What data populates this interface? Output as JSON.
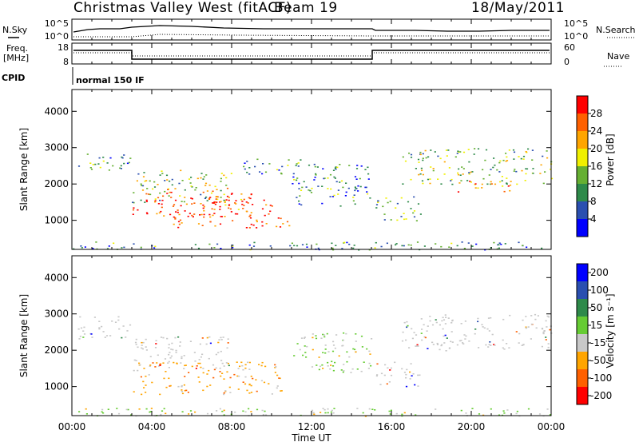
{
  "header": {
    "station": "Christmas Valley West (fitACF)",
    "beam": "Beam 19",
    "date": "18/May/2011"
  },
  "panels": {
    "nsky_label": "N.Sky",
    "nsearch_label": "N.Search",
    "nsky_ticks": [
      "10^5",
      "10^0"
    ],
    "freq_label_line1": "Freq.",
    "freq_label_line2": "[MHz]",
    "freq_ticks": [
      "18",
      "8"
    ],
    "nave_label": "Nave",
    "nave_ticks": [
      "60",
      "0"
    ],
    "cpid_label": "CPID",
    "cpid_text": "normal 150 IF"
  },
  "chart_data": [
    {
      "type": "heatmap",
      "name": "power",
      "ylabel": "Slant Range [km]",
      "xlabel": "",
      "yticks": [
        1000,
        2000,
        3000,
        4000
      ],
      "ylim": [
        200,
        4600
      ],
      "colorbar_label": "Power [dB]",
      "colorbar_ticks": [
        4,
        8,
        12,
        16,
        20,
        24,
        28
      ],
      "colorbar_colors": [
        "#0000ff",
        "#2a4fb0",
        "#2e8a4a",
        "#66b032",
        "#f0f000",
        "#ffa500",
        "#ff6000",
        "#ff0000"
      ],
      "scatter_bands": [
        {
          "t0": 0.3,
          "t1": 2.9,
          "r0": 2350,
          "r1": 2900,
          "level": 0.35
        },
        {
          "t0": 3.0,
          "t1": 9.0,
          "r0": 1100,
          "r1": 1900,
          "level": 0.85
        },
        {
          "t0": 5.0,
          "t1": 10.0,
          "r0": 800,
          "r1": 1600,
          "level": 0.9
        },
        {
          "t0": 10.0,
          "t1": 11.2,
          "r0": 800,
          "r1": 1100,
          "level": 0.85
        },
        {
          "t0": 3.0,
          "t1": 8.0,
          "r0": 1500,
          "r1": 2400,
          "level": 0.45
        },
        {
          "t0": 8.5,
          "t1": 11.5,
          "r0": 2200,
          "r1": 2700,
          "level": 0.3
        },
        {
          "t0": 11.0,
          "t1": 15.0,
          "r0": 1400,
          "r1": 2600,
          "level": 0.3
        },
        {
          "t0": 15.2,
          "t1": 17.5,
          "r0": 1000,
          "r1": 1700,
          "level": 0.4
        },
        {
          "t0": 16.5,
          "t1": 24.0,
          "r0": 2000,
          "r1": 3000,
          "level": 0.45
        },
        {
          "t0": 19.0,
          "t1": 22.0,
          "r0": 1800,
          "r1": 2100,
          "level": 0.8
        },
        {
          "t0": 0.0,
          "t1": 24.0,
          "r0": 200,
          "r1": 420,
          "level": 0.3
        }
      ]
    },
    {
      "type": "heatmap",
      "name": "velocity",
      "ylabel": "Slant Range [km]",
      "xlabel": "Time UT",
      "xticks": [
        "00:00",
        "04:00",
        "08:00",
        "12:00",
        "16:00",
        "20:00",
        "00:00"
      ],
      "yticks": [
        1000,
        2000,
        3000,
        4000
      ],
      "ylim": [
        200,
        4600
      ],
      "colorbar_label": "Velocity [m s⁻¹]",
      "colorbar_ticks": [
        "200",
        "100",
        "50",
        "15",
        "-15",
        "-50",
        "-100",
        "-200"
      ],
      "colorbar_colors": [
        "#0000ff",
        "#2a4fb0",
        "#2e8a4a",
        "#66cc33",
        "#c8c8c8",
        "#ffa500",
        "#ff6000",
        "#ff0000"
      ],
      "scatter_bands": [
        {
          "t0": 0.3,
          "t1": 2.9,
          "r0": 2300,
          "r1": 2950,
          "level": 0.0
        },
        {
          "t0": 3.0,
          "t1": 10.5,
          "r0": 800,
          "r1": 1700,
          "level": -0.6
        },
        {
          "t0": 3.0,
          "t1": 8.0,
          "r0": 1500,
          "r1": 2400,
          "level": 0.0
        },
        {
          "t0": 11.0,
          "t1": 15.0,
          "r0": 1400,
          "r1": 2500,
          "level": 0.4
        },
        {
          "t0": 15.2,
          "t1": 17.5,
          "r0": 1000,
          "r1": 1700,
          "level": 0.0
        },
        {
          "t0": 16.5,
          "t1": 24.0,
          "r0": 2000,
          "r1": 3000,
          "level": 0.0
        },
        {
          "t0": 0.0,
          "t1": 24.0,
          "r0": 200,
          "r1": 420,
          "level": 0.5
        }
      ]
    }
  ]
}
